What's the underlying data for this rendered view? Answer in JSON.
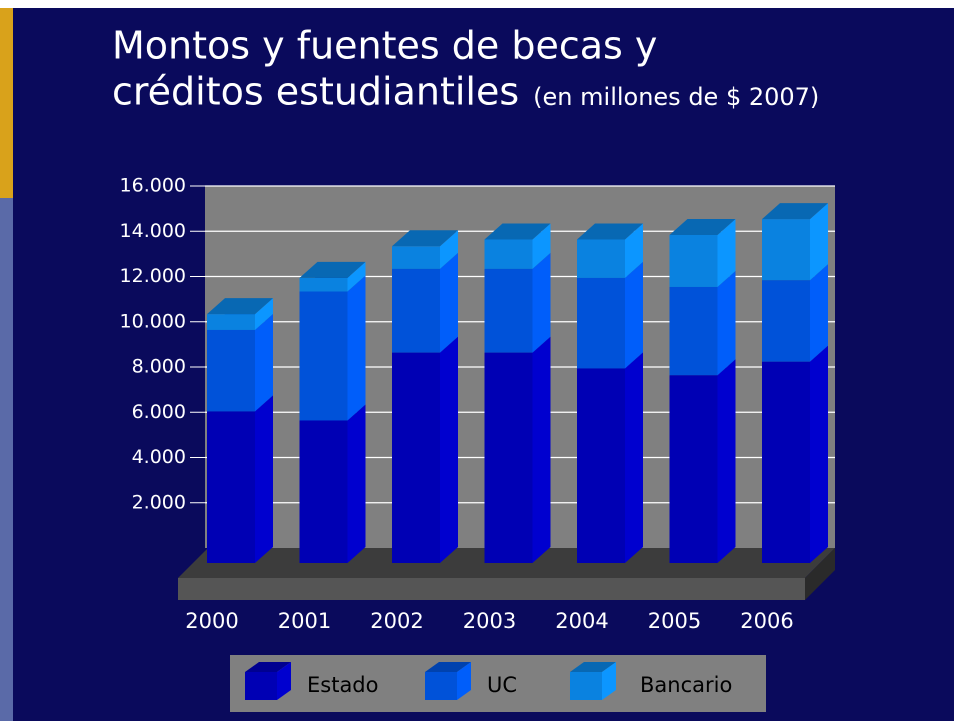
{
  "chart_data": {
    "type": "bar3d_stacked",
    "title": [
      "Montos y fuentes de becas y",
      "créditos estudiantiles"
    ],
    "subtitle": "(en millones de $ 2007)",
    "categories": [
      "2000",
      "2001",
      "2002",
      "2003",
      "2004",
      "2005",
      "2006"
    ],
    "series": [
      {
        "name": "Estado",
        "color": "#0000b4",
        "values": [
          6700,
          6300,
          9300,
          9300,
          8600,
          8300,
          8900
        ]
      },
      {
        "name": "UC",
        "color": "#0052d9",
        "values": [
          3600,
          5700,
          3700,
          3700,
          4000,
          3900,
          3600
        ]
      },
      {
        "name": "Bancario",
        "color": "#0a82e0",
        "values": [
          700,
          600,
          1000,
          1300,
          1700,
          2300,
          2700
        ]
      }
    ],
    "ylim": [
      0,
      16000
    ],
    "yticks": [
      {
        "value": 2000,
        "label": "2.000"
      },
      {
        "value": 4000,
        "label": "4.000"
      },
      {
        "value": 6000,
        "label": "6.000"
      },
      {
        "value": 8000,
        "label": "8.000"
      },
      {
        "value": 10000,
        "label": "10.000"
      },
      {
        "value": 12000,
        "label": "12.000"
      },
      {
        "value": 14000,
        "label": "14.000"
      },
      {
        "value": 16000,
        "label": "16.000"
      }
    ],
    "grid": true,
    "legend": "bottom"
  }
}
